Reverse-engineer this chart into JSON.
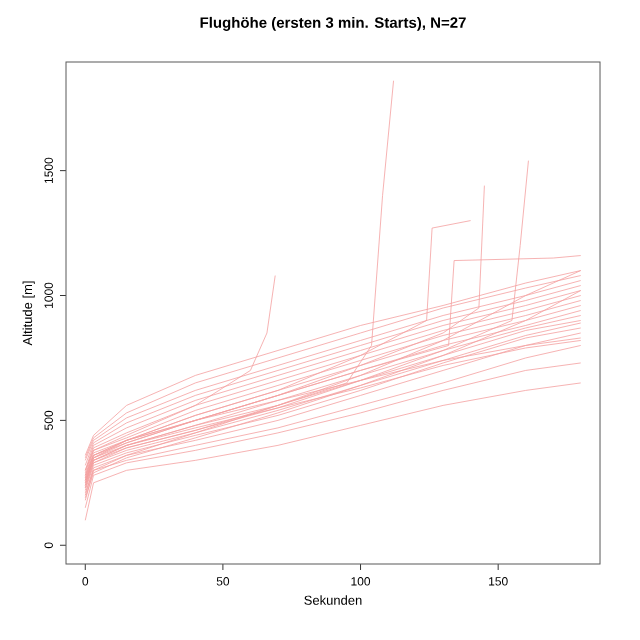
{
  "chart_data": {
    "type": "line",
    "title": "Flughöhe (ersten 3 min. Starts), N=27",
    "xlabel": "Sekunden",
    "ylabel": "Altitude [m]",
    "xlim": [
      -7,
      187
    ],
    "ylim": [
      -75,
      1935
    ],
    "xticks": [
      0,
      50,
      100,
      150
    ],
    "yticks": [
      0,
      500,
      1000,
      1500
    ],
    "marker": "none",
    "line_style": "solid",
    "x": [
      0,
      3,
      15,
      40,
      70,
      100,
      130,
      160,
      180
    ],
    "series": [
      {
        "color": "#f4a0a0",
        "values": [
          100,
          250,
          300,
          340,
          400,
          480,
          560,
          620,
          650
        ]
      },
      {
        "color": "#f4a0a0",
        "values": [
          150,
          280,
          330,
          380,
          450,
          530,
          620,
          700,
          730
        ]
      },
      {
        "color": "#f4a0a0",
        "values": [
          180,
          300,
          340,
          400,
          470,
          560,
          650,
          750,
          800
        ]
      },
      {
        "color": "#f4a0a0",
        "values": [
          200,
          310,
          360,
          420,
          500,
          600,
          700,
          800,
          850
        ]
      },
      {
        "color": "#f4a0a0",
        "values": [
          220,
          320,
          370,
          440,
          520,
          620,
          730,
          830,
          870
        ]
      },
      {
        "color": "#f4a0a0",
        "values": [
          230,
          330,
          380,
          450,
          540,
          640,
          740,
          840,
          890
        ]
      },
      {
        "color": "#f4a0a0",
        "values": [
          240,
          340,
          390,
          460,
          560,
          660,
          760,
          860,
          900
        ]
      },
      {
        "color": "#f4a0a0",
        "values": [
          250,
          350,
          400,
          480,
          580,
          680,
          780,
          870,
          920
        ]
      },
      {
        "color": "#f4a0a0",
        "values": [
          260,
          360,
          410,
          500,
          600,
          700,
          800,
          880,
          940
        ]
      },
      {
        "color": "#f4a0a0",
        "values": [
          270,
          370,
          420,
          520,
          620,
          720,
          820,
          900,
          960
        ]
      },
      {
        "color": "#f4a0a0",
        "values": [
          280,
          380,
          430,
          540,
          640,
          740,
          840,
          920,
          980
        ]
      },
      {
        "color": "#f4a0a0",
        "values": [
          290,
          390,
          450,
          560,
          660,
          760,
          860,
          940,
          1000
        ]
      },
      {
        "color": "#f4a0a0",
        "values": [
          300,
          400,
          470,
          580,
          680,
          780,
          880,
          960,
          1020
        ]
      },
      {
        "color": "#f4a0a0",
        "values": [
          320,
          410,
          490,
          600,
          700,
          800,
          900,
          980,
          1040
        ]
      },
      {
        "color": "#f4a0a0",
        "values": [
          340,
          420,
          510,
          620,
          720,
          820,
          920,
          1000,
          1060
        ]
      },
      {
        "color": "#f4a0a0",
        "values": [
          350,
          430,
          530,
          650,
          750,
          850,
          950,
          1030,
          1080
        ]
      },
      {
        "color": "#f4a0a0",
        "values": [
          360,
          440,
          560,
          680,
          780,
          880,
          960,
          1050,
          1100
        ]
      },
      {
        "color": "#f4a0a0",
        "values": [
          280,
          360,
          420,
          500,
          580,
          660,
          740,
          800,
          830
        ]
      },
      {
        "color": "#f4a0a0",
        "values": [
          260,
          340,
          400,
          470,
          550,
          630,
          720,
          790,
          820
        ]
      },
      {
        "color": "#f4a0a0",
        "x": [
          0,
          3,
          15,
          40,
          70,
          95,
          104,
          108,
          112
        ],
        "values": [
          250,
          340,
          400,
          480,
          560,
          650,
          800,
          1400,
          1860
        ]
      },
      {
        "color": "#f4a0a0",
        "x": [
          0,
          3,
          15,
          40,
          70,
          100,
          130,
          155,
          158,
          161
        ],
        "values": [
          230,
          330,
          390,
          460,
          550,
          660,
          780,
          900,
          1200,
          1540
        ]
      },
      {
        "color": "#f4a0a0",
        "x": [
          0,
          3,
          15,
          40,
          70,
          100,
          130,
          143,
          145
        ],
        "values": [
          270,
          360,
          420,
          500,
          600,
          720,
          850,
          950,
          1440
        ]
      },
      {
        "color": "#f4a0a0",
        "x": [
          0,
          3,
          15,
          40,
          60,
          66,
          69
        ],
        "values": [
          300,
          380,
          440,
          560,
          700,
          850,
          1080
        ]
      },
      {
        "color": "#f4a0a0",
        "x": [
          0,
          3,
          15,
          40,
          70,
          100,
          124,
          126,
          140
        ],
        "values": [
          240,
          350,
          420,
          520,
          620,
          760,
          900,
          1270,
          1300
        ]
      },
      {
        "color": "#f4a0a0",
        "x": [
          0,
          3,
          15,
          40,
          70,
          100,
          132,
          134,
          170,
          180
        ],
        "values": [
          260,
          350,
          410,
          500,
          600,
          700,
          800,
          1140,
          1150,
          1160
        ]
      },
      {
        "color": "#f4a0a0",
        "values": [
          210,
          300,
          360,
          450,
          560,
          680,
          820,
          1000,
          1100
        ]
      },
      {
        "color": "#f4a0a0",
        "values": [
          190,
          290,
          350,
          430,
          530,
          640,
          760,
          900,
          1020
        ]
      }
    ]
  }
}
